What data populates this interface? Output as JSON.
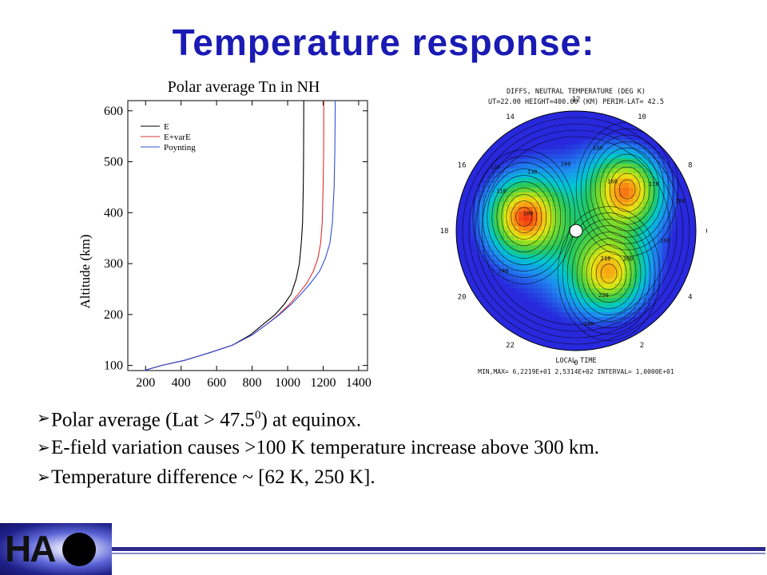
{
  "slide": {
    "title": "Temperature response:",
    "bullets": [
      {
        "pre": "Polar average (Lat > 47.5",
        "sup": "0",
        "post": ") at equinox."
      },
      {
        "pre": "E-field variation causes >100 K temperature increase above 300 km.",
        "sup": "",
        "post": ""
      },
      {
        "pre": "Temperature difference ~ [62 K, 250 K].",
        "sup": "",
        "post": ""
      }
    ],
    "logo_text": "HA"
  },
  "chart_data": [
    {
      "type": "line",
      "title": "Polar average Tn in NH",
      "xlabel": "",
      "ylabel": "Altitude (km)",
      "xlim": [
        100,
        1450
      ],
      "ylim": [
        90,
        620
      ],
      "xticks": [
        200,
        400,
        600,
        800,
        1000,
        1200,
        1400
      ],
      "yticks": [
        100,
        200,
        300,
        400,
        500,
        600
      ],
      "grid": false,
      "legend_position": "top-left",
      "series": [
        {
          "name": "E",
          "color": "#000000",
          "points": [
            [
              190,
              90
            ],
            [
              290,
              100
            ],
            [
              420,
              110
            ],
            [
              560,
              125
            ],
            [
              690,
              140
            ],
            [
              790,
              160
            ],
            [
              860,
              180
            ],
            [
              930,
              200
            ],
            [
              980,
              220
            ],
            [
              1020,
              240
            ],
            [
              1048,
              270
            ],
            [
              1066,
              300
            ],
            [
              1077,
              340
            ],
            [
              1084,
              380
            ],
            [
              1088,
              450
            ],
            [
              1090,
              520
            ],
            [
              1091,
              620
            ]
          ]
        },
        {
          "name": "E+varE",
          "color": "#e03030",
          "points": [
            [
              190,
              90
            ],
            [
              290,
              100
            ],
            [
              420,
              110
            ],
            [
              560,
              125
            ],
            [
              690,
              140
            ],
            [
              800,
              160
            ],
            [
              880,
              180
            ],
            [
              950,
              200
            ],
            [
              1010,
              220
            ],
            [
              1060,
              240
            ],
            [
              1105,
              260
            ],
            [
              1145,
              285
            ],
            [
              1170,
              310
            ],
            [
              1186,
              340
            ],
            [
              1195,
              380
            ],
            [
              1200,
              450
            ],
            [
              1203,
              520
            ],
            [
              1204,
              620
            ]
          ]
        },
        {
          "name": "Poynting",
          "color": "#3050d8",
          "points": [
            [
              190,
              90
            ],
            [
              290,
              100
            ],
            [
              420,
              110
            ],
            [
              560,
              125
            ],
            [
              690,
              140
            ],
            [
              800,
              160
            ],
            [
              880,
              180
            ],
            [
              955,
              200
            ],
            [
              1020,
              220
            ],
            [
              1075,
              240
            ],
            [
              1125,
              260
            ],
            [
              1180,
              285
            ],
            [
              1212,
              310
            ],
            [
              1238,
              340
            ],
            [
              1252,
              380
            ],
            [
              1262,
              450
            ],
            [
              1266,
              520
            ],
            [
              1268,
              620
            ]
          ]
        }
      ]
    },
    {
      "type": "heatmap",
      "title": "DIFFS, NEUTRAL TEMPERATURE (DEG K)",
      "subtitle": "UT=22.00 HEIGHT=400.00 (KM) PERIM-LAT= 42.5",
      "xlabel": "LOCAL TIME",
      "footer": "MIN,MAX= 6,2219E+01 2,5314E+02 INTERVAL= 1,0000E+01",
      "min": 62.219,
      "max": 253.14,
      "interval": 10,
      "hour_labels": [
        "0",
        "2",
        "4",
        "6",
        "8",
        "10",
        "12",
        "14",
        "16",
        "18",
        "20",
        "22"
      ],
      "contour_labels": [
        "100",
        "110",
        "120",
        "130",
        "140",
        "150",
        "160",
        "170",
        "180",
        "190",
        "200",
        "210",
        "220",
        "230",
        "240"
      ],
      "hotspots": [
        {
          "local_time": 17.0,
          "colat_frac": 0.45,
          "value": 245
        },
        {
          "local_time": 8.6,
          "colat_frac": 0.55,
          "value": 240
        },
        {
          "local_time": 2.5,
          "colat_frac": 0.45,
          "value": 225
        }
      ]
    }
  ]
}
